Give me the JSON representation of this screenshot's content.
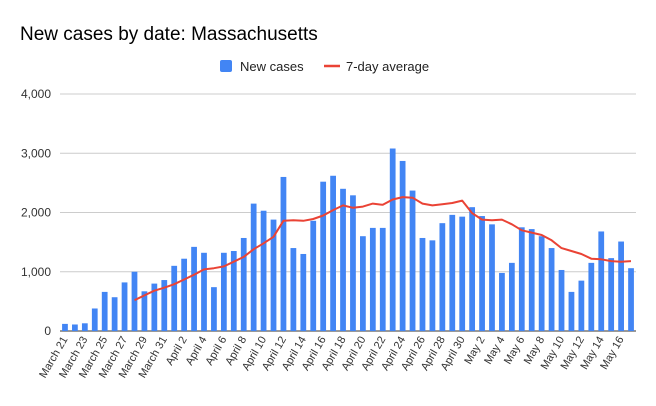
{
  "chart_data": {
    "type": "bar",
    "title": "New cases by date: Massachusetts",
    "xlabel": "",
    "ylabel": "",
    "ylim": [
      0,
      4000
    ],
    "yticks": [
      "0",
      "1,000",
      "2,000",
      "3,000",
      "4,000"
    ],
    "grid": true,
    "legend_position": "top",
    "colors": {
      "bars": "#4285f4",
      "line": "#ea4335",
      "grid": "#cccccc"
    },
    "categories": [
      "March 21",
      "March 22",
      "March 23",
      "March 24",
      "March 25",
      "March 26",
      "March 27",
      "March 28",
      "March 29",
      "March 30",
      "March 31",
      "April 1",
      "April 2",
      "April 3",
      "April 4",
      "April 5",
      "April 6",
      "April 7",
      "April 8",
      "April 9",
      "April 10",
      "April 11",
      "April 12",
      "April 13",
      "April 14",
      "April 15",
      "April 16",
      "April 17",
      "April 18",
      "April 19",
      "April 20",
      "April 21",
      "April 22",
      "April 23",
      "April 24",
      "April 25",
      "April 26",
      "April 27",
      "April 28",
      "April 29",
      "April 30",
      "May 1",
      "May 2",
      "May 3",
      "May 4",
      "May 5",
      "May 6",
      "May 7",
      "May 8",
      "May 9",
      "May 10",
      "May 11",
      "May 12",
      "May 13",
      "May 14",
      "May 15",
      "May 16",
      "May 17"
    ],
    "tick_labels": [
      "March 21",
      "March 23",
      "March 25",
      "March 27",
      "March 29",
      "March 31",
      "April 2",
      "April 4",
      "April 6",
      "April 8",
      "April 10",
      "April 12",
      "April 14",
      "April 16",
      "April 18",
      "April 20",
      "April 22",
      "April 24",
      "April 26",
      "April 28",
      "April 30",
      "May 2",
      "May 4",
      "May 6",
      "May 8",
      "May 10",
      "May 12",
      "May 14",
      "May 16"
    ],
    "series": [
      {
        "name": "New cases",
        "kind": "bar",
        "values": [
          120,
          110,
          130,
          380,
          660,
          570,
          820,
          1000,
          670,
          800,
          860,
          1100,
          1220,
          1420,
          1320,
          740,
          1320,
          1350,
          1570,
          2150,
          2030,
          1880,
          2600,
          1400,
          1300,
          1860,
          2520,
          2620,
          2400,
          2290,
          1600,
          1740,
          1740,
          3080,
          2870,
          2370,
          1570,
          1530,
          1820,
          1960,
          1930,
          2090,
          1940,
          1800,
          980,
          1150,
          1750,
          1720,
          1600,
          1400,
          1030,
          660,
          850,
          1150,
          1680,
          1230,
          1510,
          1060
        ]
      },
      {
        "name": "7-day average",
        "kind": "line",
        "values": [
          null,
          null,
          null,
          null,
          null,
          null,
          null,
          520,
          600,
          680,
          730,
          790,
          870,
          950,
          1040,
          1060,
          1090,
          1170,
          1250,
          1380,
          1480,
          1590,
          1860,
          1870,
          1860,
          1890,
          1950,
          2040,
          2120,
          2080,
          2100,
          2150,
          2130,
          2220,
          2260,
          2250,
          2150,
          2120,
          2140,
          2160,
          2200,
          1990,
          1880,
          1870,
          1880,
          1800,
          1700,
          1660,
          1620,
          1530,
          1400,
          1350,
          1300,
          1220,
          1210,
          1180,
          1170,
          1180
        ]
      }
    ]
  }
}
